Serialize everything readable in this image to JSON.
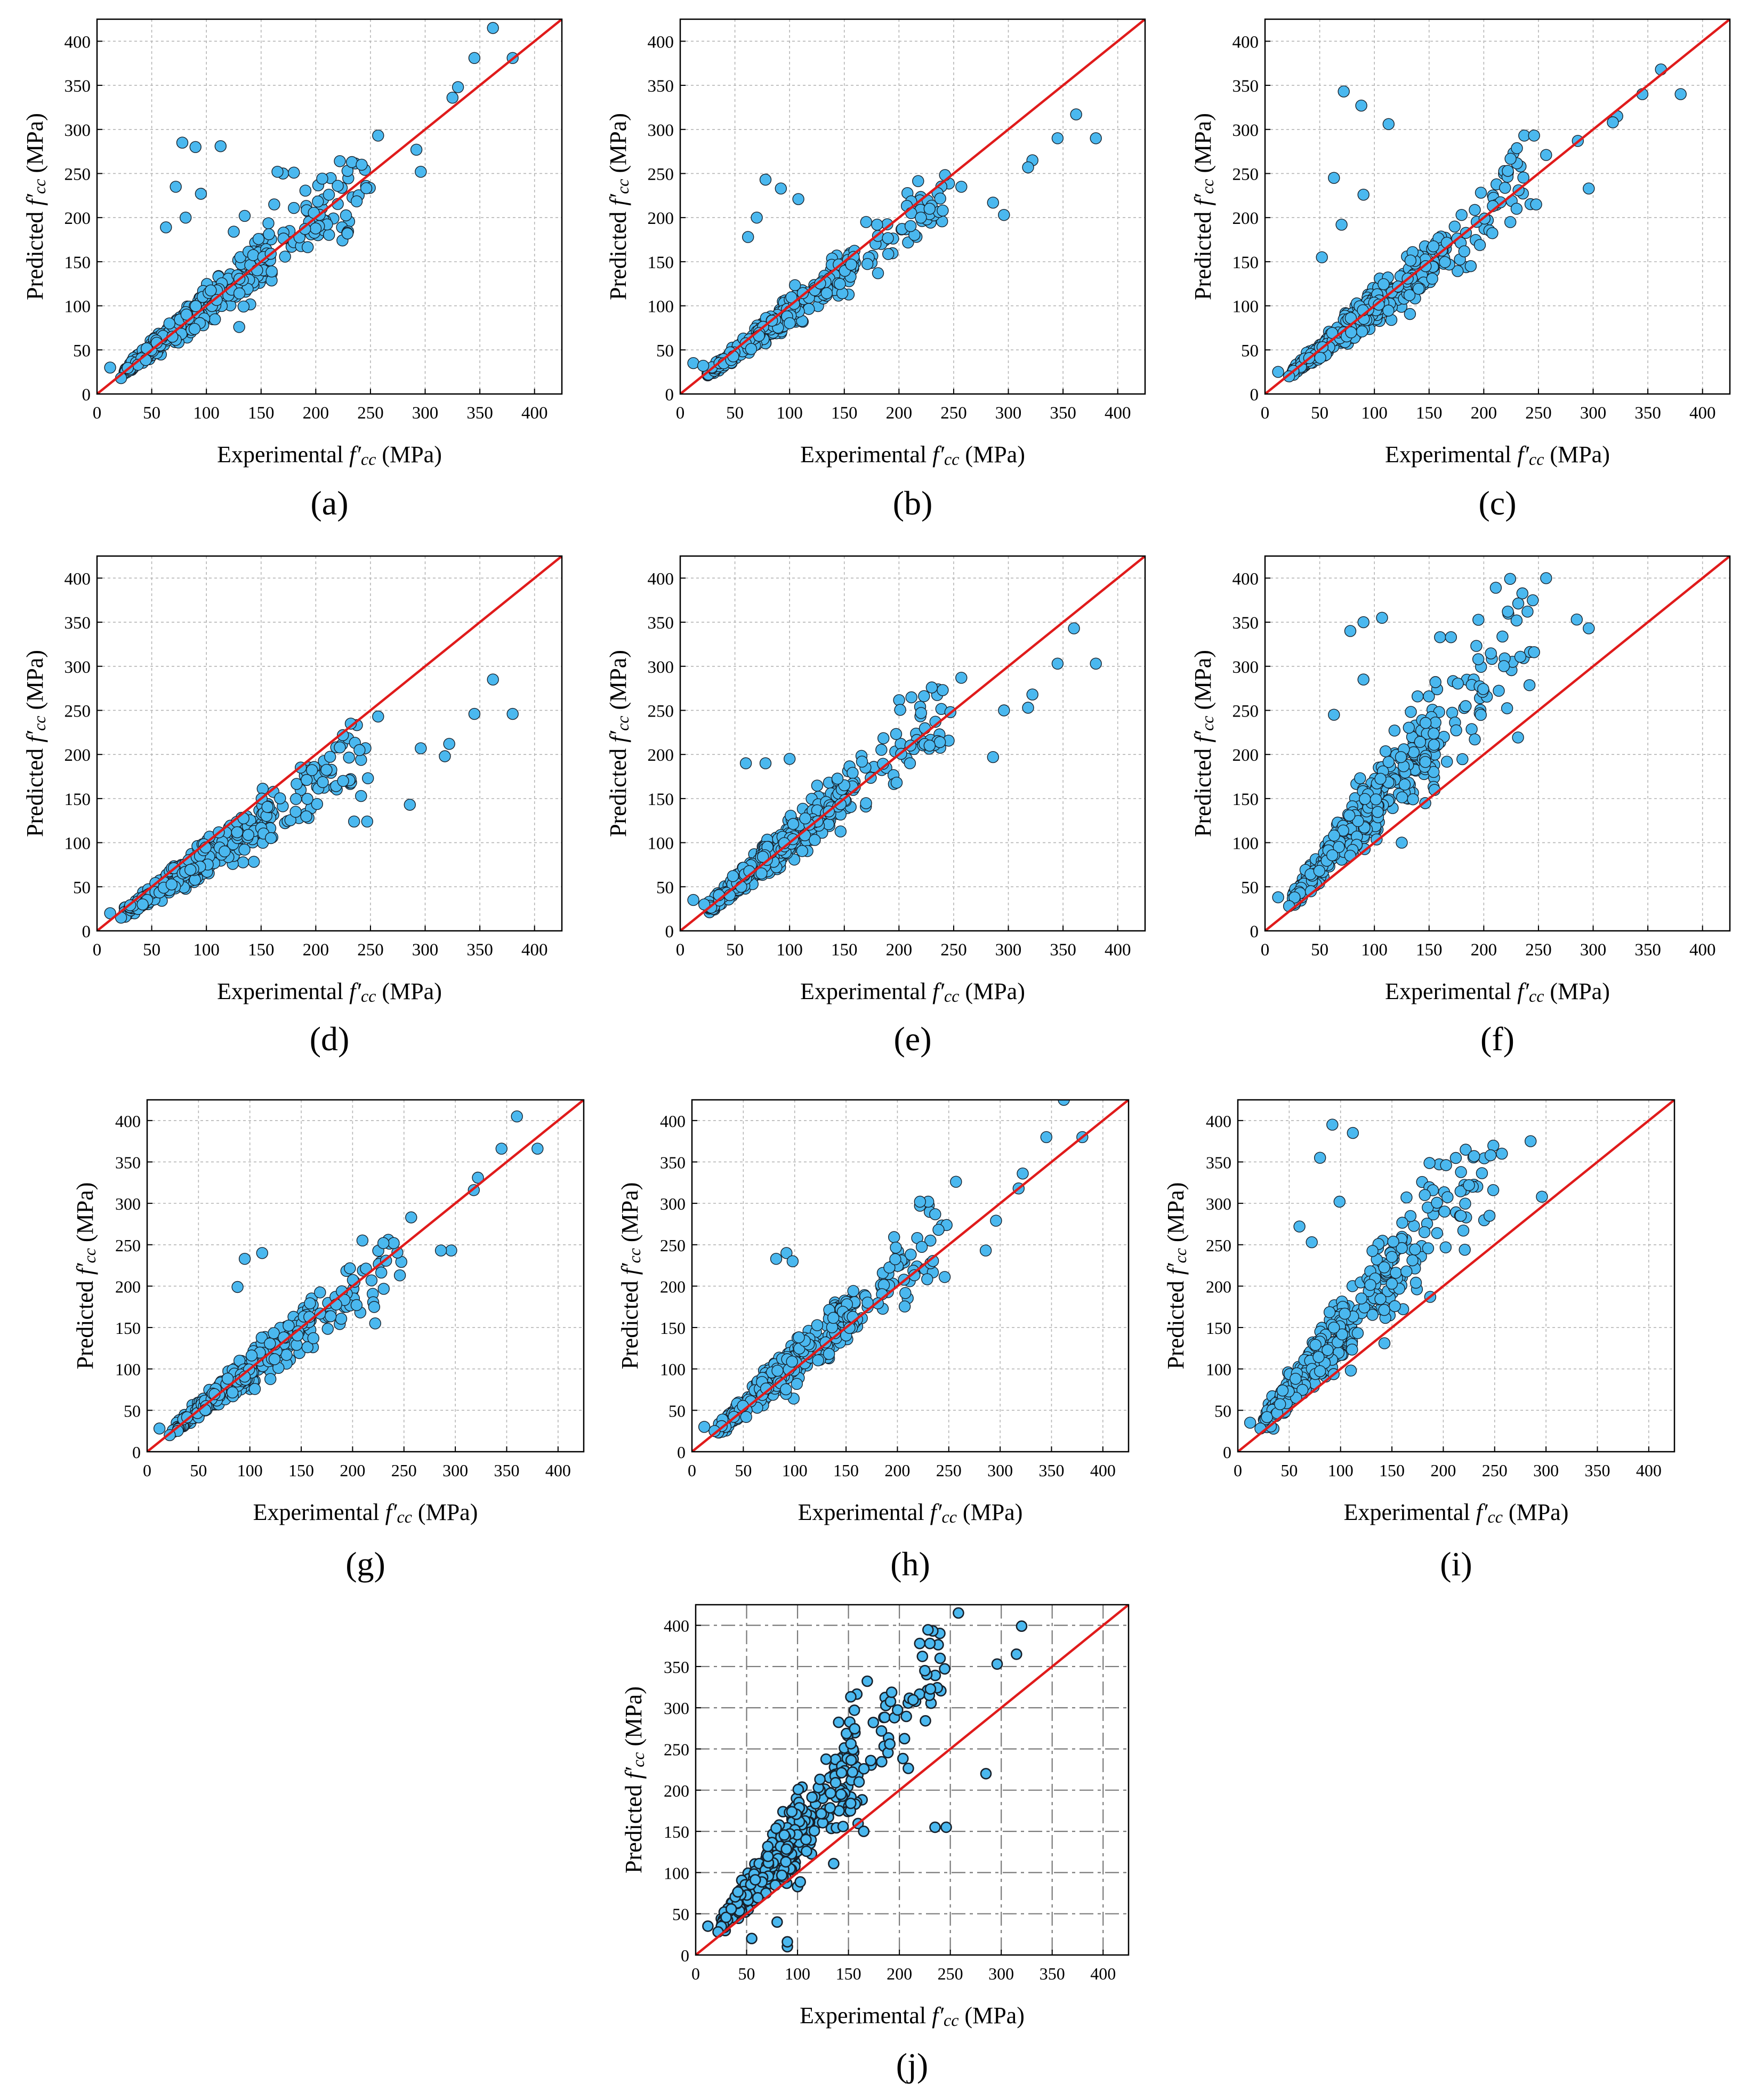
{
  "colors": {
    "marker_fill": "#4ab8ef",
    "marker_edge": "#17202a",
    "identity_line": "#e01b1b",
    "grid": "#b5b5b5",
    "grid_dark": "#7a7a7a"
  },
  "chart_data": [
    {
      "panel": "(a)",
      "type": "scatter",
      "xlabel_pre": "Experimental ",
      "ylabel_pre": "Predicted ",
      "var": "f′",
      "sub": "cc",
      "unit": " (MPa)",
      "xlim": [
        0,
        425
      ],
      "ylim": [
        0,
        425
      ],
      "xticks": [
        0,
        50,
        100,
        150,
        200,
        250,
        300,
        350,
        400
      ],
      "yticks": [
        0,
        50,
        100,
        150,
        200,
        250,
        300,
        350,
        400
      ],
      "grid": "dotted",
      "identity_line": true,
      "bias": 1.0,
      "spread": 0.17,
      "seed": 11,
      "points": [
        [
          362,
          415
        ],
        [
          345,
          381
        ],
        [
          380,
          381
        ],
        [
          330,
          348
        ],
        [
          325,
          336
        ],
        [
          292,
          277
        ],
        [
          296,
          252
        ],
        [
          257,
          293
        ],
        [
          229,
          253
        ],
        [
          222,
          264
        ],
        [
          233,
          263
        ],
        [
          242,
          260
        ],
        [
          212,
          226
        ],
        [
          229,
          182
        ],
        [
          170,
          250
        ],
        [
          180,
          251
        ],
        [
          165,
          252
        ],
        [
          162,
          215
        ],
        [
          135,
          202
        ],
        [
          125,
          184
        ],
        [
          130,
          76
        ],
        [
          78,
          285
        ],
        [
          90,
          280
        ],
        [
          113,
          281
        ],
        [
          72,
          235
        ],
        [
          95,
          227
        ],
        [
          63,
          189
        ],
        [
          81,
          200
        ],
        [
          12,
          30
        ],
        [
          22,
          18
        ]
      ]
    },
    {
      "panel": "(b)",
      "type": "scatter",
      "xlabel_pre": "Experimental ",
      "ylabel_pre": "Predicted ",
      "var": "f′",
      "sub": "cc",
      "unit": " (MPa)",
      "xlim": [
        0,
        425
      ],
      "ylim": [
        0,
        425
      ],
      "xticks": [
        0,
        50,
        100,
        150,
        200,
        250,
        300,
        350,
        400
      ],
      "yticks": [
        0,
        50,
        100,
        150,
        200,
        250,
        300,
        350,
        400
      ],
      "grid": "dotted",
      "identity_line": true,
      "bias": 0.93,
      "spread": 0.15,
      "seed": 23,
      "points": [
        [
          362,
          317
        ],
        [
          345,
          290
        ],
        [
          380,
          290
        ],
        [
          322,
          265
        ],
        [
          318,
          257
        ],
        [
          286,
          217
        ],
        [
          296,
          203
        ],
        [
          257,
          235
        ],
        [
          228,
          210
        ],
        [
          220,
          200
        ],
        [
          240,
          208
        ],
        [
          78,
          243
        ],
        [
          92,
          233
        ],
        [
          108,
          221
        ],
        [
          70,
          200
        ],
        [
          62,
          178
        ],
        [
          12,
          35
        ],
        [
          21,
          32
        ],
        [
          170,
          195
        ],
        [
          180,
          192
        ]
      ]
    },
    {
      "panel": "(c)",
      "type": "scatter",
      "xlabel_pre": "Experimental ",
      "ylabel_pre": "Predicted ",
      "var": "f′",
      "sub": "cc",
      "unit": " (MPa)",
      "xlim": [
        0,
        425
      ],
      "ylim": [
        0,
        425
      ],
      "xticks": [
        0,
        50,
        100,
        150,
        200,
        250,
        300,
        350,
        400
      ],
      "yticks": [
        0,
        50,
        100,
        150,
        200,
        250,
        300,
        350,
        400
      ],
      "grid": "dotted",
      "identity_line": true,
      "bias": 1.0,
      "spread": 0.18,
      "seed": 37,
      "points": [
        [
          362,
          368
        ],
        [
          345,
          340
        ],
        [
          380,
          340
        ],
        [
          322,
          315
        ],
        [
          318,
          308
        ],
        [
          286,
          287
        ],
        [
          296,
          233
        ],
        [
          257,
          271
        ],
        [
          237,
          293
        ],
        [
          246,
          293
        ],
        [
          222,
          253
        ],
        [
          230,
          210
        ],
        [
          72,
          343
        ],
        [
          88,
          327
        ],
        [
          113,
          306
        ],
        [
          63,
          245
        ],
        [
          90,
          226
        ],
        [
          70,
          192
        ],
        [
          52,
          155
        ],
        [
          12,
          25
        ],
        [
          22,
          20
        ]
      ]
    },
    {
      "panel": "(d)",
      "type": "scatter",
      "xlabel_pre": "Experimental ",
      "ylabel_pre": "Predicted ",
      "var": "f′",
      "sub": "cc",
      "unit": " (MPa)",
      "xlim": [
        0,
        425
      ],
      "ylim": [
        0,
        425
      ],
      "xticks": [
        0,
        50,
        100,
        150,
        200,
        250,
        300,
        350,
        400
      ],
      "yticks": [
        0,
        50,
        100,
        150,
        200,
        250,
        300,
        350,
        400
      ],
      "grid": "dotted",
      "identity_line": true,
      "bias": 0.82,
      "spread": 0.2,
      "seed": 41,
      "points": [
        [
          362,
          285
        ],
        [
          345,
          246
        ],
        [
          380,
          246
        ],
        [
          322,
          212
        ],
        [
          318,
          198
        ],
        [
          296,
          207
        ],
        [
          286,
          143
        ],
        [
          257,
          243
        ],
        [
          247,
          124
        ],
        [
          240,
          205
        ],
        [
          235,
          124
        ],
        [
          225,
          170
        ],
        [
          222,
          208
        ],
        [
          232,
          235
        ],
        [
          12,
          20
        ],
        [
          22,
          15
        ]
      ]
    },
    {
      "panel": "(e)",
      "type": "scatter",
      "xlabel_pre": "Experimental ",
      "ylabel_pre": "Predicted ",
      "var": "f′",
      "sub": "cc",
      "unit": " (MPa)",
      "xlim": [
        0,
        425
      ],
      "ylim": [
        0,
        425
      ],
      "xticks": [
        0,
        50,
        100,
        150,
        200,
        250,
        300,
        350,
        400
      ],
      "yticks": [
        0,
        50,
        100,
        150,
        200,
        250,
        300,
        350,
        400
      ],
      "grid": "dotted",
      "identity_line": true,
      "bias": 1.03,
      "spread": 0.19,
      "seed": 53,
      "points": [
        [
          360,
          343
        ],
        [
          345,
          303
        ],
        [
          380,
          303
        ],
        [
          322,
          268
        ],
        [
          318,
          253
        ],
        [
          296,
          250
        ],
        [
          286,
          197
        ],
        [
          257,
          287
        ],
        [
          247,
          248
        ],
        [
          240,
          273
        ],
        [
          230,
          276
        ],
        [
          228,
          210
        ],
        [
          210,
          190
        ],
        [
          60,
          190
        ],
        [
          78,
          190
        ],
        [
          100,
          195
        ],
        [
          12,
          35
        ],
        [
          22,
          30
        ]
      ]
    },
    {
      "panel": "(f)",
      "type": "scatter",
      "xlabel_pre": "Experimental ",
      "ylabel_pre": "Predicted ",
      "var": "f′",
      "sub": "cc",
      "unit": " (MPa)",
      "xlim": [
        0,
        425
      ],
      "ylim": [
        0,
        425
      ],
      "xticks": [
        0,
        50,
        100,
        150,
        200,
        250,
        300,
        350,
        400
      ],
      "yticks": [
        0,
        50,
        100,
        150,
        200,
        250,
        300,
        350,
        400
      ],
      "grid": "dotted",
      "identity_line": true,
      "bias": 1.45,
      "spread": 0.22,
      "seed": 67,
      "points": [
        [
          257,
          400
        ],
        [
          240,
          362
        ],
        [
          230,
          352
        ],
        [
          222,
          362
        ],
        [
          285,
          353
        ],
        [
          296,
          343
        ],
        [
          246,
          316
        ],
        [
          160,
          333
        ],
        [
          170,
          333
        ],
        [
          78,
          340
        ],
        [
          90,
          350
        ],
        [
          107,
          355
        ],
        [
          63,
          245
        ],
        [
          90,
          285
        ],
        [
          12,
          38
        ],
        [
          22,
          28
        ],
        [
          125,
          100
        ]
      ]
    },
    {
      "panel": "(g)",
      "type": "scatter",
      "xlabel_pre": "Experimental ",
      "ylabel_pre": "Predicted ",
      "var": "f′",
      "sub": "cc",
      "unit": " (MPa)",
      "xlim": [
        0,
        425
      ],
      "ylim": [
        0,
        425
      ],
      "xticks": [
        0,
        50,
        100,
        150,
        200,
        250,
        300,
        350,
        400
      ],
      "yticks": [
        0,
        50,
        100,
        150,
        200,
        250,
        300,
        350,
        400
      ],
      "grid": "dotted",
      "identity_line": true,
      "bias": 1.0,
      "spread": 0.17,
      "seed": 79,
      "points": [
        [
          360,
          405
        ],
        [
          345,
          366
        ],
        [
          380,
          366
        ],
        [
          322,
          331
        ],
        [
          318,
          316
        ],
        [
          296,
          243
        ],
        [
          286,
          243
        ],
        [
          257,
          283
        ],
        [
          246,
          213
        ],
        [
          240,
          252
        ],
        [
          230,
          252
        ],
        [
          222,
          155
        ],
        [
          95,
          233
        ],
        [
          112,
          240
        ],
        [
          88,
          199
        ],
        [
          12,
          28
        ],
        [
          22,
          20
        ]
      ]
    },
    {
      "panel": "(h)",
      "type": "scatter",
      "xlabel_pre": "Experimental ",
      "ylabel_pre": "Predicted ",
      "var": "f′",
      "sub": "cc",
      "unit": " (MPa)",
      "xlim": [
        0,
        425
      ],
      "ylim": [
        0,
        425
      ],
      "xticks": [
        0,
        50,
        100,
        150,
        200,
        250,
        300,
        350,
        400
      ],
      "yticks": [
        0,
        50,
        100,
        150,
        200,
        250,
        300,
        350,
        400
      ],
      "grid": "dotted",
      "identity_line": true,
      "bias": 1.1,
      "spread": 0.19,
      "seed": 83,
      "points": [
        [
          362,
          425
        ],
        [
          345,
          380
        ],
        [
          380,
          380
        ],
        [
          322,
          336
        ],
        [
          318,
          318
        ],
        [
          296,
          279
        ],
        [
          286,
          243
        ],
        [
          257,
          326
        ],
        [
          246,
          211
        ],
        [
          240,
          268
        ],
        [
          230,
          302
        ],
        [
          222,
          302
        ],
        [
          92,
          240
        ],
        [
          98,
          230
        ],
        [
          82,
          233
        ],
        [
          12,
          30
        ],
        [
          22,
          25
        ]
      ]
    },
    {
      "panel": "(i)",
      "type": "scatter",
      "xlabel_pre": "Experimental ",
      "ylabel_pre": "Predicted ",
      "var": "f′",
      "sub": "cc",
      "unit": " (MPa)",
      "xlim": [
        0,
        425
      ],
      "ylim": [
        0,
        425
      ],
      "xticks": [
        0,
        50,
        100,
        150,
        200,
        250,
        300,
        350,
        400
      ],
      "yticks": [
        0,
        50,
        100,
        150,
        200,
        250,
        300,
        350,
        400
      ],
      "grid": "dotted",
      "identity_line": true,
      "bias": 1.45,
      "spread": 0.22,
      "seed": 97,
      "points": [
        [
          285,
          375
        ],
        [
          296,
          308
        ],
        [
          257,
          360
        ],
        [
          246,
          358
        ],
        [
          230,
          357
        ],
        [
          225,
          322
        ],
        [
          217,
          285
        ],
        [
          245,
          285
        ],
        [
          92,
          395
        ],
        [
          112,
          385
        ],
        [
          80,
          355
        ],
        [
          99,
          302
        ],
        [
          60,
          272
        ],
        [
          72,
          253
        ],
        [
          12,
          35
        ],
        [
          22,
          28
        ],
        [
          110,
          98
        ]
      ]
    },
    {
      "panel": "(j)",
      "type": "scatter",
      "xlabel_pre": "Experimental ",
      "ylabel_pre": "Predicted ",
      "var": "f′",
      "sub": "cc",
      "unit": " (MPa)",
      "xlim": [
        0,
        425
      ],
      "ylim": [
        0,
        425
      ],
      "xticks": [
        0,
        50,
        100,
        150,
        200,
        250,
        300,
        350,
        400
      ],
      "yticks": [
        0,
        50,
        100,
        150,
        200,
        250,
        300,
        350,
        400
      ],
      "grid": "dashed",
      "identity_line": true,
      "bias": 1.5,
      "spread": 0.25,
      "seed": 101,
      "points": [
        [
          258,
          415
        ],
        [
          320,
          399
        ],
        [
          315,
          365
        ],
        [
          296,
          353
        ],
        [
          285,
          220
        ],
        [
          240,
          360
        ],
        [
          230,
          378
        ],
        [
          220,
          378
        ],
        [
          225,
          345
        ],
        [
          246,
          155
        ],
        [
          235,
          155
        ],
        [
          165,
          150
        ],
        [
          12,
          35
        ],
        [
          22,
          28
        ],
        [
          90,
          10
        ],
        [
          90,
          16
        ],
        [
          80,
          40
        ],
        [
          55,
          20
        ]
      ]
    }
  ]
}
